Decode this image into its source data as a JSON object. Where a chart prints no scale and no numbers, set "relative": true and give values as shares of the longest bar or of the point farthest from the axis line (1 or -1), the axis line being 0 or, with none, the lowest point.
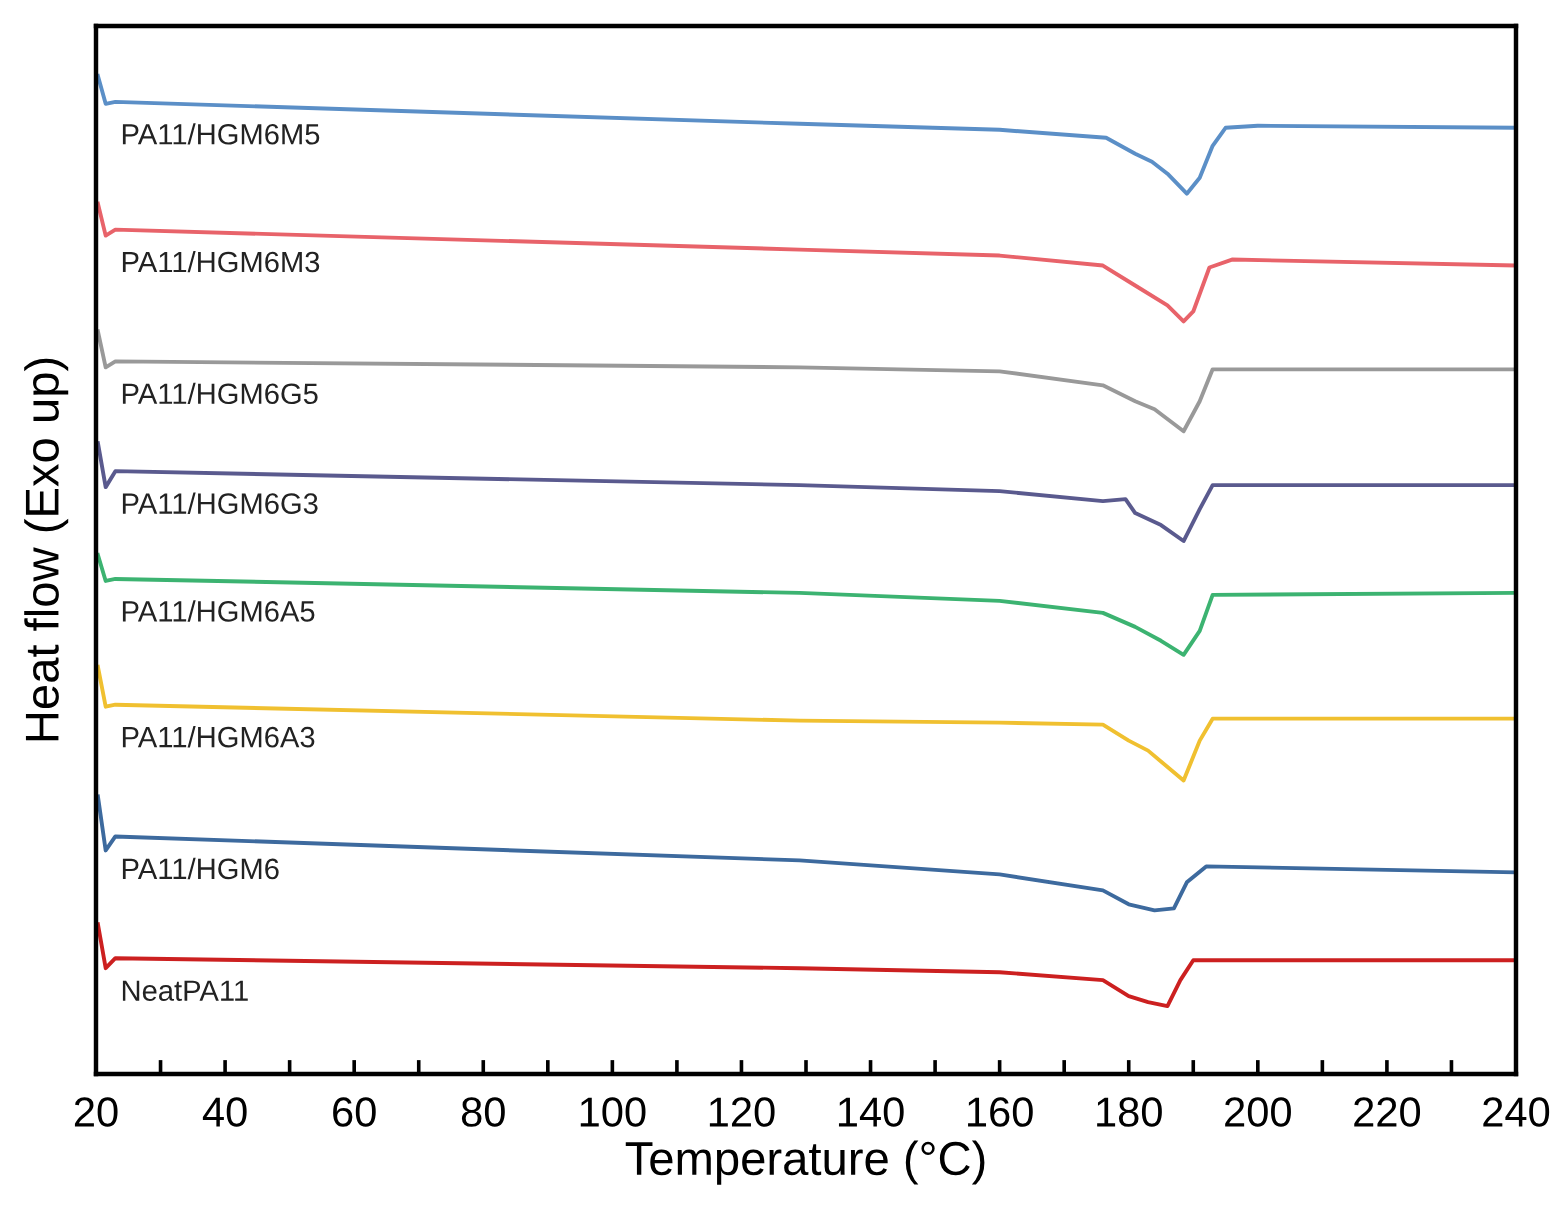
{
  "chart_data": {
    "type": "line",
    "relative": true,
    "xlabel": "Temperature (°C)",
    "ylabel": "Heat flow (Exo up)",
    "xlim": [
      20,
      240
    ],
    "xticks": [
      20,
      {
        "value": 30,
        "label": null
      },
      40,
      {
        "value": 50,
        "label": null
      },
      60,
      {
        "value": 70,
        "label": null
      },
      80,
      {
        "value": 90,
        "label": null
      },
      100,
      {
        "value": 110,
        "label": null
      },
      120,
      {
        "value": 130,
        "label": null
      },
      140,
      {
        "value": 150,
        "label": null
      },
      160,
      {
        "value": 170,
        "label": null
      },
      180,
      {
        "value": 190,
        "label": null
      },
      200,
      {
        "value": 210,
        "label": null
      },
      220,
      {
        "value": 230,
        "label": null
      },
      240
    ],
    "grid": false,
    "legend": false,
    "line_style": "solid",
    "marker": "none",
    "series": [
      {
        "name": "PA11/HGM6M5",
        "color": "#5b8fc7",
        "x": [
          20.3,
          21.5,
          23,
          129,
          160,
          176.5,
          181,
          183.6,
          186,
          189,
          191,
          193,
          195,
          200,
          240
        ],
        "values": [
          1.0,
          0.972,
          0.974,
          0.952,
          0.946,
          0.938,
          0.922,
          0.914,
          0.902,
          0.882,
          0.898,
          0.93,
          0.948,
          0.95,
          0.948
        ]
      },
      {
        "name": "PA11/HGM6M3",
        "color": "#e8636a",
        "x": [
          20.3,
          21.5,
          23,
          129,
          160,
          176,
          181,
          186,
          188.5,
          190,
          192.5,
          196,
          240
        ],
        "values": [
          0.872,
          0.84,
          0.846,
          0.826,
          0.82,
          0.81,
          0.79,
          0.77,
          0.754,
          0.764,
          0.808,
          0.816,
          0.81
        ]
      },
      {
        "name": "PA11/HGM6G5",
        "color": "#999999",
        "x": [
          20.3,
          21.5,
          23,
          129,
          160,
          176,
          181,
          184,
          188.5,
          191,
          193,
          240
        ],
        "values": [
          0.744,
          0.708,
          0.714,
          0.708,
          0.704,
          0.69,
          0.674,
          0.666,
          0.644,
          0.674,
          0.706,
          0.706
        ]
      },
      {
        "name": "PA11/HGM6G3",
        "color": "#5a5a8e",
        "x": [
          20.3,
          21.5,
          23,
          129,
          160,
          176,
          179.5,
          181,
          185,
          188.5,
          191,
          193,
          240
        ],
        "values": [
          0.632,
          0.588,
          0.604,
          0.59,
          0.584,
          0.574,
          0.576,
          0.562,
          0.55,
          0.534,
          0.566,
          0.59,
          0.59
        ]
      },
      {
        "name": "PA11/HGM6A5",
        "color": "#3cb371",
        "x": [
          20.3,
          21.5,
          23,
          129,
          160,
          176,
          181,
          185,
          188.5,
          191,
          193,
          240
        ],
        "values": [
          0.52,
          0.494,
          0.496,
          0.482,
          0.474,
          0.462,
          0.448,
          0.434,
          0.42,
          0.444,
          0.48,
          0.482
        ]
      },
      {
        "name": "PA11/HGM6A3",
        "color": "#f0c030",
        "x": [
          20.3,
          21.5,
          23,
          129,
          160,
          176,
          180,
          183,
          188.5,
          191,
          193,
          240
        ],
        "values": [
          0.408,
          0.368,
          0.37,
          0.354,
          0.352,
          0.35,
          0.334,
          0.324,
          0.294,
          0.334,
          0.356,
          0.356
        ]
      },
      {
        "name": "PA11/HGM6",
        "color": "#3d6a9e",
        "x": [
          20.3,
          21.5,
          23,
          129,
          160,
          176,
          180,
          184,
          187,
          189,
          192,
          240
        ],
        "values": [
          0.278,
          0.224,
          0.238,
          0.214,
          0.2,
          0.184,
          0.17,
          0.164,
          0.166,
          0.192,
          0.208,
          0.202
        ]
      },
      {
        "name": "NeatPA11",
        "color": "#cc2020",
        "x": [
          20.3,
          21.5,
          23,
          129,
          160,
          176,
          180,
          183,
          186,
          188,
          190,
          240
        ],
        "values": [
          0.15,
          0.106,
          0.116,
          0.106,
          0.102,
          0.094,
          0.078,
          0.072,
          0.068,
          0.094,
          0.114,
          0.114
        ]
      }
    ]
  }
}
